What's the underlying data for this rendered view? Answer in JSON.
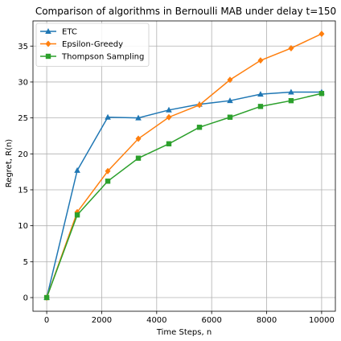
{
  "chart_data": {
    "type": "line",
    "title": "Comparison of algorithms in Bernoulli MAB under delay t=150",
    "xlabel": "Time Steps, n",
    "ylabel": "Regret, R(n)",
    "xlim": [
      -500,
      10500
    ],
    "ylim": [
      -1.9,
      38.5
    ],
    "xticks": [
      0,
      2000,
      4000,
      6000,
      8000,
      10000
    ],
    "yticks": [
      0,
      5,
      10,
      15,
      20,
      25,
      30,
      35
    ],
    "grid": true,
    "legend_position": "top-left",
    "series": [
      {
        "name": "ETC",
        "color": "#1f77b4",
        "marker": "triangle",
        "x": [
          0,
          1111,
          2222,
          3333,
          4444,
          5556,
          6667,
          7778,
          8889,
          10000
        ],
        "y": [
          0,
          17.7,
          25.1,
          25.0,
          26.1,
          26.9,
          27.4,
          28.3,
          28.6,
          28.6
        ]
      },
      {
        "name": "Epsilon-Greedy",
        "color": "#ff7f0e",
        "marker": "diamond",
        "x": [
          0,
          1111,
          2222,
          3333,
          4444,
          5556,
          6667,
          7778,
          8889,
          10000
        ],
        "y": [
          0,
          11.9,
          17.6,
          22.1,
          25.1,
          26.8,
          30.3,
          33.0,
          34.7,
          36.7
        ]
      },
      {
        "name": "Thompson Sampling",
        "color": "#2ca02c",
        "marker": "square",
        "x": [
          0,
          1111,
          2222,
          3333,
          4444,
          5556,
          6667,
          7778,
          8889,
          10000
        ],
        "y": [
          0,
          11.5,
          16.2,
          19.4,
          21.4,
          23.7,
          25.1,
          26.6,
          27.4,
          28.4
        ]
      }
    ]
  }
}
